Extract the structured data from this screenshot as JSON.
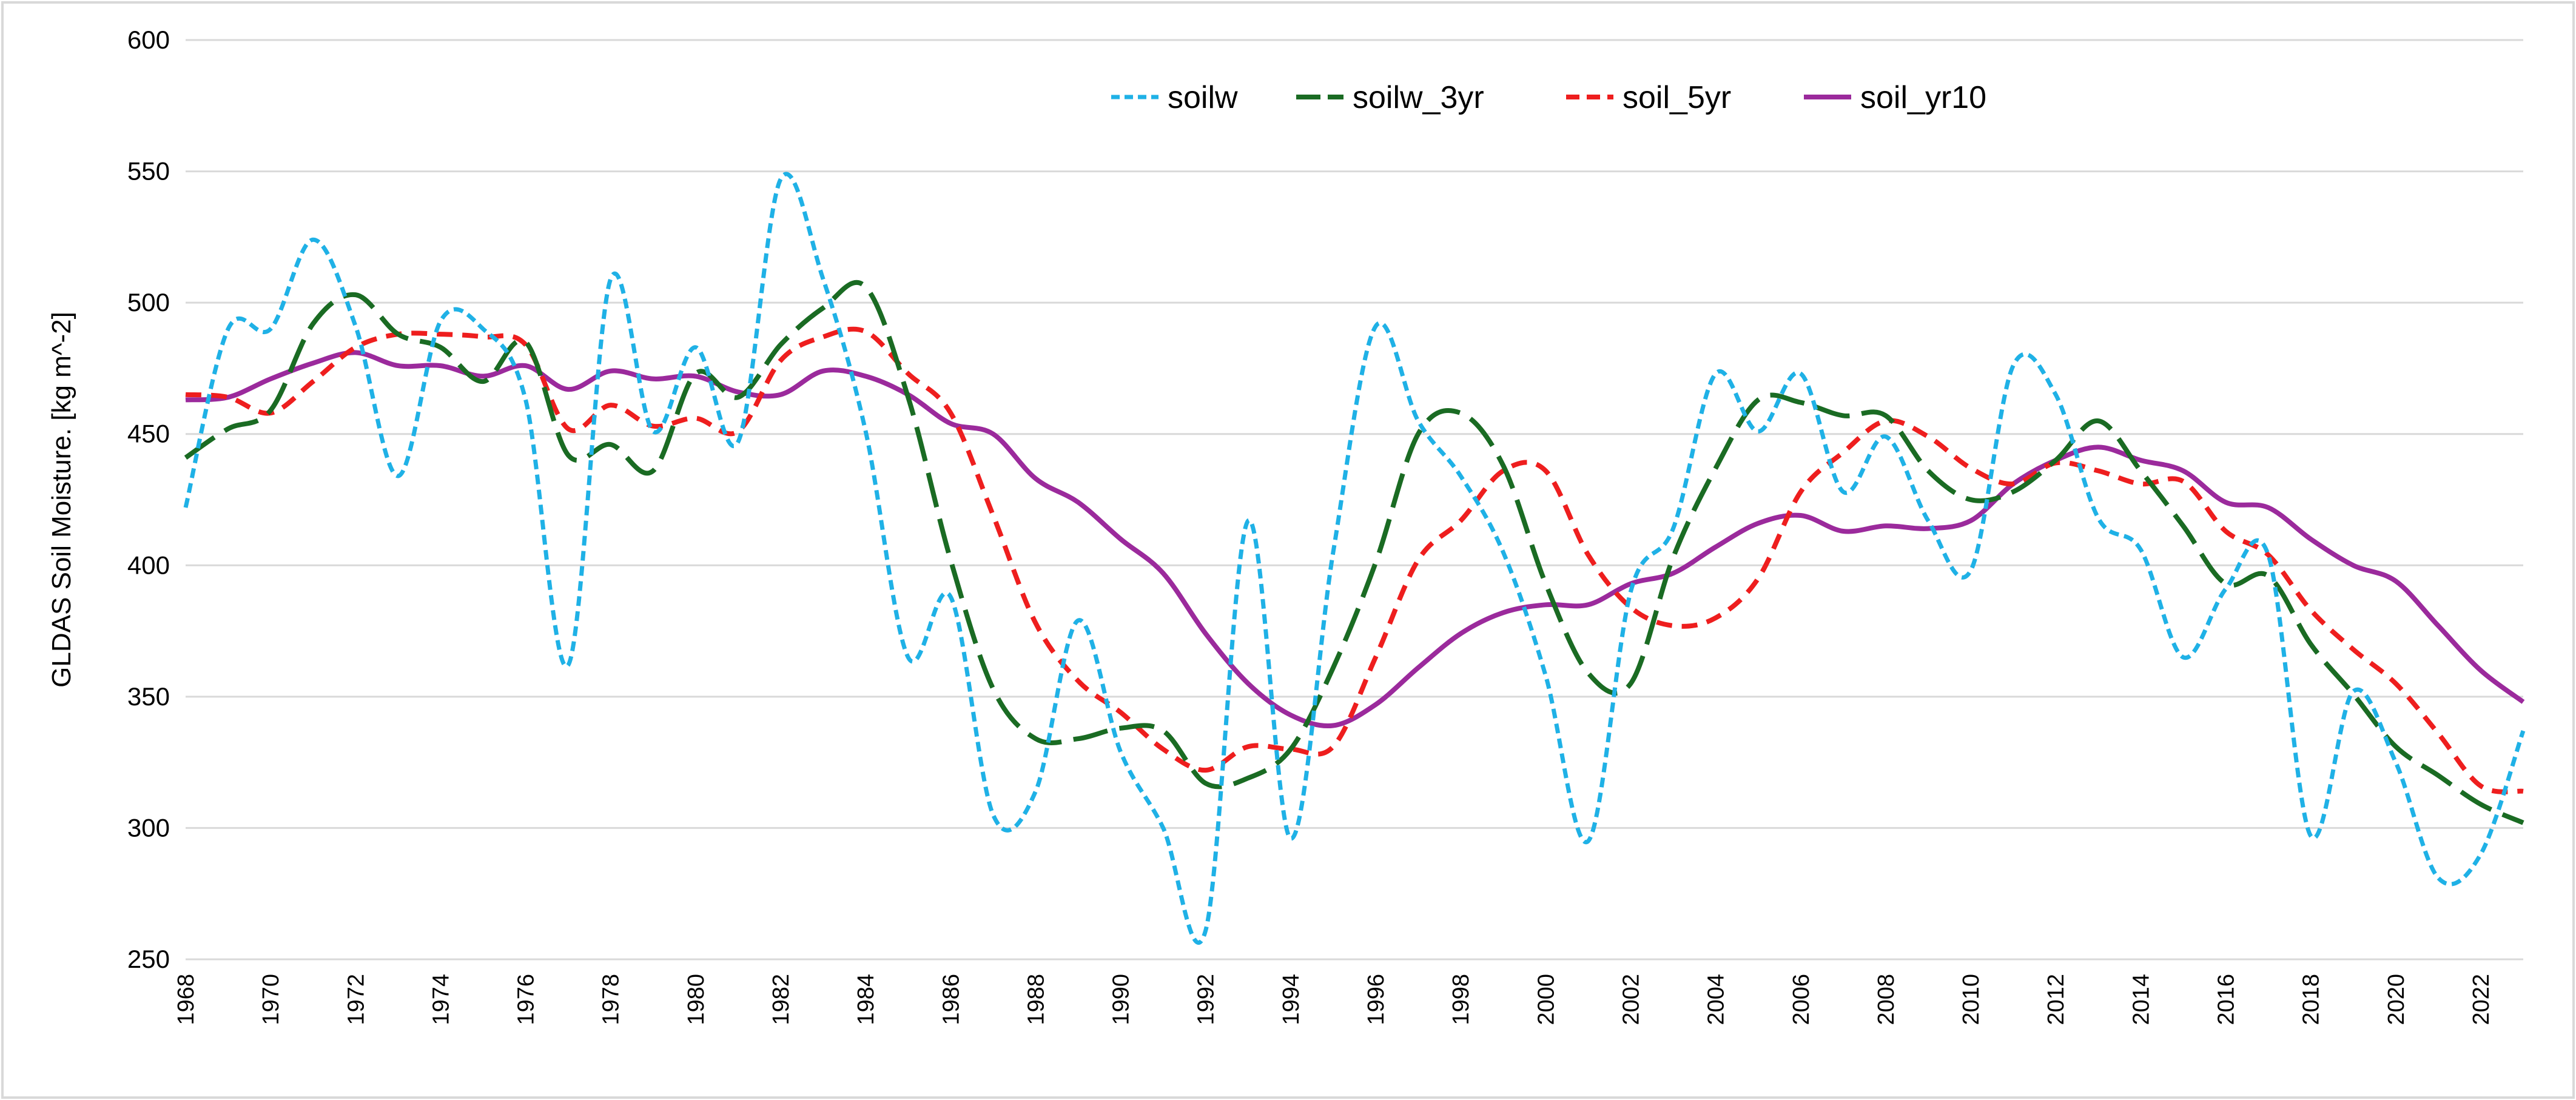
{
  "chart_data": {
    "type": "line",
    "title": "",
    "xlabel": "",
    "ylabel": "GLDAS Soil Moisture.  [kg m^-2]",
    "xlim": [
      1968,
      2023
    ],
    "ylim": [
      250,
      600
    ],
    "yticks": [
      250,
      300,
      350,
      400,
      450,
      500,
      550,
      600
    ],
    "xticks": [
      1968,
      1970,
      1972,
      1974,
      1976,
      1978,
      1980,
      1982,
      1984,
      1986,
      1988,
      1990,
      1992,
      1994,
      1996,
      1998,
      2000,
      2002,
      2004,
      2006,
      2008,
      2010,
      2012,
      2014,
      2016,
      2018,
      2020,
      2022
    ],
    "grid": "horizontal",
    "legend_position": "top-right",
    "x": [
      1968,
      1969,
      1970,
      1971,
      1972,
      1973,
      1974,
      1975,
      1976,
      1977,
      1978,
      1979,
      1980,
      1981,
      1982,
      1983,
      1984,
      1985,
      1986,
      1987,
      1988,
      1989,
      1990,
      1991,
      1992,
      1993,
      1994,
      1995,
      1996,
      1997,
      1998,
      1999,
      2000,
      2001,
      2002,
      2003,
      2004,
      2005,
      2006,
      2007,
      2008,
      2009,
      2010,
      2011,
      2012,
      2013,
      2014,
      2015,
      2016,
      2017,
      2018,
      2019,
      2020,
      2021,
      2022,
      2023
    ],
    "series": [
      {
        "name": "soilw",
        "color": "#1fb1e6",
        "dash": "short-dash",
        "values": [
          422,
          490,
          490,
          524,
          491,
          434,
          493,
          490,
          463,
          362,
          509,
          451,
          483,
          447,
          547,
          509,
          451,
          365,
          388,
          305,
          314,
          379,
          329,
          300,
          261,
          417,
          296,
          405,
          491,
          455,
          434,
          405,
          358,
          295,
          390,
          414,
          473,
          451,
          473,
          428,
          449,
          417,
          398,
          476,
          465,
          418,
          406,
          365,
          391,
          404,
          297,
          352,
          325,
          281,
          290,
          337
        ]
      },
      {
        "name": "soilw_3yr",
        "color": "#1a6b23",
        "dash": "long-dash",
        "values": [
          441,
          452,
          459,
          492,
          503,
          488,
          483,
          470,
          485,
          442,
          446,
          436,
          473,
          464,
          484,
          498,
          506,
          464,
          402,
          353,
          334,
          334,
          338,
          337,
          317,
          319,
          330,
          361,
          401,
          450,
          458,
          438,
          393,
          359,
          355,
          403,
          437,
          463,
          462,
          457,
          457,
          436,
          425,
          428,
          440,
          455,
          436,
          415,
          393,
          396,
          370,
          351,
          331,
          320,
          309,
          302
        ]
      },
      {
        "name": "soil_5yr",
        "color": "#ee1e1e",
        "dash": "dash",
        "values": [
          465,
          464,
          458,
          470,
          483,
          488,
          488,
          487,
          484,
          452,
          461,
          453,
          456,
          451,
          478,
          487,
          489,
          473,
          458,
          419,
          378,
          356,
          344,
          330,
          322,
          331,
          330,
          331,
          365,
          402,
          417,
          436,
          436,
          404,
          384,
          377,
          380,
          395,
          428,
          443,
          455,
          449,
          437,
          431,
          439,
          436,
          431,
          432,
          413,
          404,
          383,
          368,
          355,
          336,
          316,
          314
        ]
      },
      {
        "name": "soil_yr10",
        "color": "#9b2a9c",
        "dash": "solid",
        "values": [
          463,
          464,
          471,
          477,
          481,
          476,
          476,
          472,
          476,
          467,
          474,
          471,
          472,
          466,
          465,
          474,
          472,
          465,
          454,
          450,
          433,
          424,
          410,
          397,
          374,
          355,
          343,
          339,
          347,
          361,
          374,
          382,
          385,
          385,
          393,
          397,
          407,
          416,
          419,
          413,
          415,
          414,
          417,
          431,
          440,
          445,
          440,
          436,
          424,
          422,
          410,
          400,
          394,
          377,
          360,
          348
        ]
      }
    ]
  }
}
